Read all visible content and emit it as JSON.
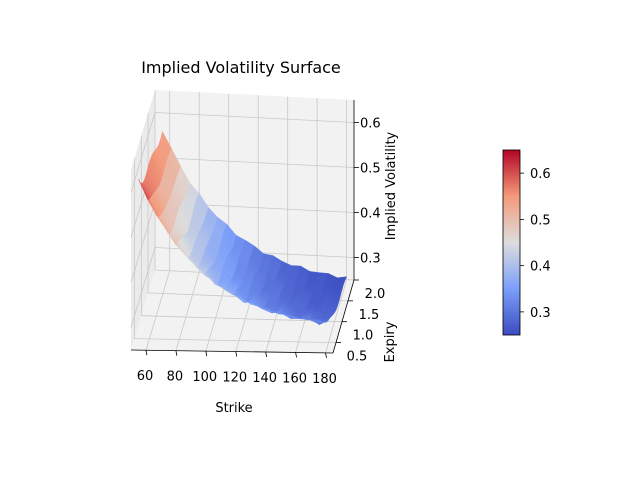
{
  "chart_data": {
    "type": "surface",
    "title": "Implied Volatility Surface",
    "xlabel": "Strike",
    "ylabel": "Expiry",
    "zlabel": "Implied Volatility",
    "xlim": [
      50,
      185
    ],
    "ylim": [
      0.25,
      2.0
    ],
    "zlim": [
      0.25,
      0.65
    ],
    "xticks": [
      60,
      80,
      100,
      120,
      140,
      160,
      180
    ],
    "yticks": [
      0.5,
      1.0,
      1.5,
      2.0
    ],
    "zticks": [
      0.3,
      0.4,
      0.5,
      0.6
    ],
    "strike_range": [
      55,
      180
    ],
    "expiry_range": [
      0.25,
      2.0
    ],
    "iv_range": [
      0.25,
      0.63
    ],
    "colormap": "coolwarm",
    "colorbar": {
      "min": 0.25,
      "max": 0.65,
      "ticks": [
        0.3,
        0.4,
        0.5,
        0.6
      ]
    },
    "grid": true
  }
}
